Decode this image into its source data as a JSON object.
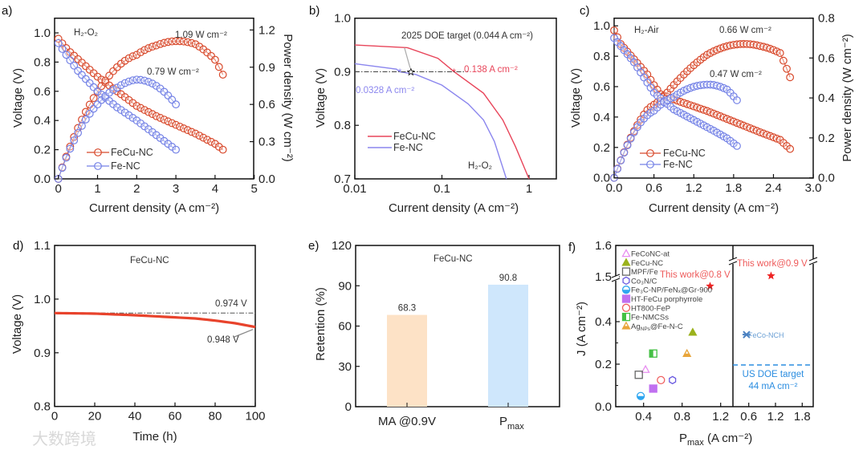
{
  "figure": {
    "watermark": "大数跨境"
  },
  "colors": {
    "fecu": "#d8482a",
    "fe": "#7381e6",
    "fecu_b": "#e8455a",
    "fe_b": "#8b86ee",
    "stab": "#e8432c",
    "bar_ma": "#fde2c6",
    "bar_p": "#cfe7fc",
    "doe": "#2b8de0",
    "star": "#ee2424"
  },
  "chart_data": [
    {
      "panel": "a)",
      "type": "line",
      "condition": "H₂-O₂",
      "xlabel": "Current density (A cm⁻²)",
      "ylabel": "Voltage (V)",
      "y2label": "Power density (W cm⁻²)",
      "xlim": [
        -0.1,
        5
      ],
      "ylim": [
        0,
        1.1
      ],
      "y2lim": [
        0,
        1.3
      ],
      "xticks": [
        "0",
        "1",
        "2",
        "3",
        "4",
        "5"
      ],
      "yticks": [
        "0.0",
        "0.2",
        "0.4",
        "0.6",
        "0.8",
        "1.0"
      ],
      "y2ticks": [
        "0.0",
        "0.3",
        "0.6",
        "0.9",
        "1.2"
      ],
      "series": [
        {
          "name": "FeCu-NC",
          "jmax": 4.2,
          "j": [
            0,
            0.25,
            0.5,
            1,
            1.5,
            2,
            2.5,
            3,
            3.5,
            4,
            4.2
          ],
          "V": [
            0.96,
            0.88,
            0.82,
            0.7,
            0.6,
            0.5,
            0.43,
            0.37,
            0.31,
            0.24,
            0.2
          ],
          "peak_label": "1.09 W cm⁻²"
        },
        {
          "name": "Fe-NC",
          "jmax": 3.0,
          "j": [
            0,
            0.25,
            0.5,
            1,
            1.5,
            2,
            2.5,
            3
          ],
          "V": [
            0.93,
            0.83,
            0.74,
            0.6,
            0.49,
            0.4,
            0.3,
            0.2
          ],
          "peak_label": "0.79 W cm⁻²"
        }
      ],
      "legend": [
        "FeCu-NC",
        "Fe-NC"
      ]
    },
    {
      "panel": "b)",
      "type": "line",
      "xscale": "log",
      "condition": "H₂-O₂",
      "xlabel": "Current density (A cm⁻²)",
      "ylabel": "Voltage (V)",
      "xlim": [
        0.01,
        2.05
      ],
      "ylim": [
        0.7,
        1.0
      ],
      "xticks": [
        "0.01",
        "0.1",
        "1"
      ],
      "yticks": [
        "0.7",
        "0.8",
        "0.9",
        "1.0"
      ],
      "series": [
        {
          "name": "FeCu-NC",
          "j": [
            0.01,
            0.04,
            0.09,
            0.138,
            0.3,
            0.5,
            0.7,
            1.0
          ],
          "V": [
            0.95,
            0.945,
            0.925,
            0.9,
            0.86,
            0.81,
            0.76,
            0.7
          ],
          "mark_j": 0.138,
          "mark_label": "0.138 A cm⁻²"
        },
        {
          "name": "Fe-NC",
          "j": [
            0.01,
            0.03,
            0.0328,
            0.05,
            0.1,
            0.2,
            0.3,
            0.4,
            0.55
          ],
          "V": [
            0.915,
            0.905,
            0.9,
            0.895,
            0.875,
            0.84,
            0.81,
            0.77,
            0.7
          ],
          "mark_j": 0.0328,
          "mark_label": "0.0328 A cm⁻²"
        }
      ],
      "reference_V": 0.9,
      "doe_target": {
        "j": 0.044,
        "label": "2025 DOE target (0.044 A cm⁻²)"
      },
      "legend": [
        "FeCu-NC",
        "Fe-NC"
      ]
    },
    {
      "panel": "c)",
      "type": "line",
      "condition": "H₂-Air",
      "xlabel": "Current density (A cm⁻²)",
      "ylabel": "Voltage (V)",
      "y2label": "Power density (W cm⁻²)",
      "xlim": [
        0,
        3.0
      ],
      "ylim": [
        0,
        1.05
      ],
      "y2lim": [
        0,
        0.8
      ],
      "xticks": [
        "0.0",
        "0.6",
        "1.2",
        "1.8",
        "2.4",
        "3.0"
      ],
      "yticks": [
        "0.0",
        "0.2",
        "0.4",
        "0.6",
        "0.8",
        "1.0"
      ],
      "y2ticks": [
        "0.0",
        "0.2",
        "0.4",
        "0.6",
        "0.8"
      ],
      "series": [
        {
          "name": "FeCu-NC",
          "jmax": 2.65,
          "j": [
            0,
            0.1,
            0.3,
            0.5,
            0.6,
            0.7,
            1.0,
            1.4,
            1.8,
            2.2,
            2.5,
            2.65
          ],
          "V": [
            0.97,
            0.88,
            0.78,
            0.68,
            0.61,
            0.55,
            0.5,
            0.44,
            0.37,
            0.3,
            0.25,
            0.19
          ],
          "peak_label": "0.66 W cm⁻²"
        },
        {
          "name": "Fe-NC",
          "jmax": 1.88,
          "j": [
            0,
            0.3,
            0.6,
            0.9,
            1.2,
            1.5,
            1.7,
            1.88
          ],
          "V": [
            0.92,
            0.76,
            0.56,
            0.45,
            0.38,
            0.31,
            0.26,
            0.2
          ],
          "peak_label": "0.47 W cm⁻²"
        }
      ],
      "legend": [
        "FeCu-NC",
        "Fe-NC"
      ]
    },
    {
      "panel": "d)",
      "type": "line",
      "title": "FeCu-NC",
      "xlabel": "Time (h)",
      "ylabel": "Voltage (V)",
      "xlim": [
        0,
        100
      ],
      "ylim": [
        0.8,
        1.1
      ],
      "xticks": [
        "0",
        "20",
        "40",
        "60",
        "80",
        "100"
      ],
      "yticks": [
        "0.8",
        "0.9",
        "1.0",
        "1.1"
      ],
      "series": [
        {
          "name": "FeCu-NC",
          "t": [
            0,
            20,
            40,
            60,
            70,
            80,
            90,
            100
          ],
          "V": [
            0.974,
            0.973,
            0.97,
            0.966,
            0.964,
            0.96,
            0.955,
            0.948
          ]
        }
      ],
      "start_label": "0.974 V",
      "end_label": "0.948 V",
      "start_V": 0.974
    },
    {
      "panel": "e)",
      "type": "bar",
      "title": "FeCu-NC",
      "ylabel": "Retention (%)",
      "ylim": [
        0,
        120
      ],
      "yticks": [
        "0",
        "30",
        "60",
        "90",
        "120"
      ],
      "categories": [
        "MA @0.9V",
        "P"
      ],
      "category_sub": [
        "",
        "max"
      ],
      "values": [
        68.3,
        90.8
      ],
      "value_labels": [
        "68.3",
        "90.8"
      ]
    },
    {
      "panel": "f)",
      "type": "scatter",
      "ylabel": "J (A cm⁻²)",
      "xlabel_main": "P",
      "xlabel_sub": "max",
      "xlabel_unit": " (A cm⁻²)",
      "left_xticks": [
        "0.4",
        "0.8",
        "1.2"
      ],
      "right_xticks": [
        "0.6",
        "1.2",
        "1.8"
      ],
      "yticks": [
        "0.0",
        "0.2",
        "0.4",
        "1.5",
        "1.6"
      ],
      "y_break": [
        0.6,
        1.5
      ],
      "points": [
        {
          "name": "FeCoNC-at",
          "x": 0.42,
          "y": 0.175,
          "marker": "triangle-open",
          "color": "#e88ff0"
        },
        {
          "name": "FeCu-NC",
          "x": 0.91,
          "y": 0.35,
          "marker": "triangle",
          "color": "#9bb21c"
        },
        {
          "name": "MPF/Fe",
          "x": 0.35,
          "y": 0.15,
          "marker": "square-open",
          "color": "#666666"
        },
        {
          "name": "Co₃N/C",
          "x": 0.7,
          "y": 0.125,
          "marker": "hexagon-open",
          "color": "#6a5ae0"
        },
        {
          "name": "Fe₃C-NP/FeNₓ@Gr-900",
          "x": 0.37,
          "y": 0.05,
          "marker": "halfcircle",
          "color": "#2fa6f0"
        },
        {
          "name": "HT-FeCu porphyrrole",
          "x": 0.5,
          "y": 0.085,
          "marker": "square",
          "color": "#c070f0"
        },
        {
          "name": "HT800-FeP",
          "x": 0.58,
          "y": 0.125,
          "marker": "circle-open",
          "color": "#f06060"
        },
        {
          "name": "Fe-NMCSs",
          "x": 0.5,
          "y": 0.25,
          "marker": "halfsquare",
          "color": "#44c044"
        },
        {
          "name": "Ag",
          "name_sub": "NPs",
          "name_tail": "@Fe-N-C",
          "x": 0.85,
          "y": 0.25,
          "marker": "triangle-half",
          "color": "#e8a53a"
        }
      ],
      "this_work_08": {
        "label": "This work@0.8 V",
        "x": 1.09,
        "y": 1.47
      },
      "right_points": [
        {
          "name": "This work@0.9 V",
          "x": 1.1,
          "y": 0.138
        },
        {
          "name": "FeCo-NCH",
          "x": 0.55,
          "y": 0.076
        }
      ],
      "doe": {
        "y": 0.044,
        "label1": "US DOE target",
        "label2": "44 mA cm⁻²"
      }
    }
  ]
}
